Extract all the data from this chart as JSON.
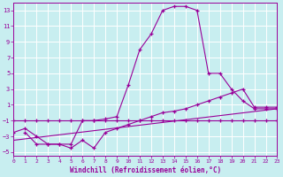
{
  "background_color": "#c8eef0",
  "grid_color": "#b0d8dc",
  "line_color": "#990099",
  "xlabel": "Windchill (Refroidissement éolien,°C)",
  "xlim": [
    0,
    23
  ],
  "ylim": [
    -5.5,
    14
  ],
  "xticks": [
    0,
    1,
    2,
    3,
    4,
    5,
    6,
    7,
    8,
    9,
    10,
    11,
    12,
    13,
    14,
    15,
    16,
    17,
    18,
    19,
    20,
    21,
    22,
    23
  ],
  "yticks": [
    -5,
    -3,
    -1,
    1,
    3,
    5,
    7,
    9,
    11,
    13
  ],
  "series1_x": [
    1,
    2,
    3,
    4,
    5,
    6,
    7,
    8,
    9,
    10,
    11,
    12,
    13,
    14,
    15,
    16,
    17,
    18,
    19,
    20,
    21,
    22,
    23
  ],
  "series1_y": [
    -2.5,
    -4,
    -4,
    -4,
    -4,
    -1,
    -1,
    -0.8,
    -0.5,
    3.5,
    8,
    10,
    13,
    13.5,
    13.5,
    13,
    5,
    5,
    3,
    1.5,
    0.5,
    0.5,
    0.5
  ],
  "series2_x": [
    0,
    1,
    2,
    3,
    4,
    5,
    6,
    7,
    8,
    9,
    10,
    11,
    12,
    13,
    14,
    15,
    16,
    17,
    18,
    19,
    20,
    21,
    22,
    23
  ],
  "series2_y": [
    -1,
    -1,
    -1,
    -1,
    -1,
    -1,
    -1,
    -1,
    -1,
    -1,
    -1,
    -1,
    -1,
    -1,
    -1,
    -1,
    -1,
    -1,
    -1,
    -1,
    -1,
    -1,
    -1,
    -1
  ],
  "series3_x": [
    0,
    1,
    2,
    3,
    4,
    5,
    6,
    7,
    8,
    9,
    10,
    11,
    12,
    13,
    14,
    15,
    16,
    17,
    18,
    19,
    20,
    21,
    22,
    23
  ],
  "series3_y": [
    -2.5,
    -2,
    -3,
    -4,
    -4,
    -4.5,
    -3.5,
    -4.5,
    -2.5,
    -2,
    -1.5,
    -1,
    -0.5,
    0,
    0.2,
    0.5,
    1,
    1.5,
    2,
    2.5,
    3,
    0.7,
    0.7,
    0.7
  ],
  "series4_x": [
    0,
    23
  ],
  "series4_y": [
    -3.5,
    0.5
  ]
}
